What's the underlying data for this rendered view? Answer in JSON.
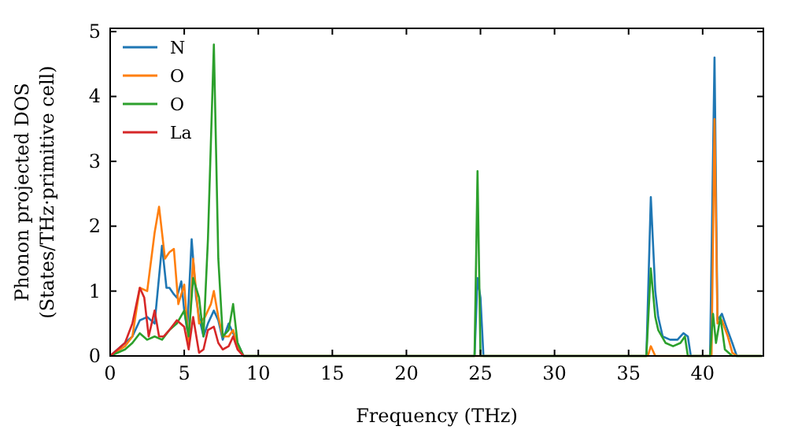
{
  "chart_data": {
    "type": "line",
    "xlabel": "Frequency (THz)",
    "ylabel": "Phonon projected DOS\n(States/THz·primitive cell)",
    "xlim": [
      0,
      44.1
    ],
    "ylim": [
      0,
      5.05
    ],
    "xticks": [
      0,
      5,
      10,
      15,
      20,
      25,
      30,
      35,
      40
    ],
    "yticks": [
      0,
      1,
      2,
      3,
      4,
      5
    ],
    "legend": "top left",
    "grid": false,
    "series": [
      {
        "name": "N",
        "color": "#1f77b4",
        "x": [
          0,
          0.5,
          1,
          1.5,
          2,
          2.5,
          3,
          3.5,
          3.8,
          4,
          4.3,
          4.5,
          4.8,
          5,
          5.2,
          5.5,
          5.8,
          6,
          6.3,
          6.6,
          7,
          7.3,
          7.6,
          8,
          8.4,
          8.8,
          9,
          24.6,
          24.8,
          25,
          25.2,
          36.2,
          36.5,
          36.8,
          37,
          37.3,
          37.8,
          38.3,
          38.7,
          39,
          39.2,
          40.5,
          40.8,
          41,
          41.3,
          41.6,
          42,
          42.3,
          44
        ],
        "values": [
          0,
          0.1,
          0.2,
          0.3,
          0.55,
          0.6,
          0.5,
          1.7,
          1.05,
          1.05,
          0.95,
          0.9,
          1.15,
          0.7,
          0.4,
          1.8,
          0.9,
          0.6,
          0.3,
          0.5,
          0.7,
          0.55,
          0.25,
          0.5,
          0.3,
          0.1,
          0,
          0,
          1.2,
          0.9,
          0,
          0,
          2.45,
          1,
          0.6,
          0.3,
          0.25,
          0.25,
          0.35,
          0.3,
          0,
          0,
          4.6,
          0.55,
          0.65,
          0.45,
          0.2,
          0,
          0
        ]
      },
      {
        "name": "O",
        "color": "#ff7f0e",
        "x": [
          0,
          1,
          1.5,
          2,
          2.5,
          3,
          3.3,
          3.7,
          4,
          4.3,
          4.6,
          5,
          5.3,
          5.6,
          6,
          6.4,
          6.8,
          7,
          7.3,
          7.6,
          8,
          8.3,
          8.7,
          9,
          36.3,
          36.5,
          36.8,
          40.6,
          40.8,
          41,
          41.3,
          41.7,
          42,
          42.3,
          44
        ],
        "values": [
          0,
          0.15,
          0.3,
          1.05,
          1,
          1.9,
          2.3,
          1.5,
          1.6,
          1.65,
          0.8,
          1.1,
          0.15,
          1.5,
          0.5,
          0.6,
          0.8,
          1,
          0.6,
          0.3,
          0.3,
          0.4,
          0.1,
          0,
          0,
          0.15,
          0,
          0,
          3.65,
          0.5,
          0.55,
          0.3,
          0.05,
          0,
          0
        ]
      },
      {
        "name": "O",
        "color": "#2ca02c",
        "x": [
          0,
          1,
          1.5,
          2,
          2.5,
          3,
          3.5,
          4,
          4.5,
          5,
          5.3,
          5.6,
          6,
          6.3,
          6.6,
          7,
          7.3,
          7.6,
          8,
          8.3,
          8.6,
          9,
          24.6,
          24.8,
          25,
          36.2,
          36.5,
          36.8,
          37,
          37.5,
          38,
          38.5,
          38.8,
          39,
          40.5,
          40.7,
          40.9,
          41.2,
          41.5,
          42,
          44
        ],
        "values": [
          0,
          0.1,
          0.2,
          0.35,
          0.25,
          0.3,
          0.25,
          0.4,
          0.5,
          0.7,
          0.3,
          1.2,
          0.9,
          0.3,
          1.8,
          4.8,
          1.5,
          0.3,
          0.4,
          0.8,
          0.2,
          0,
          0,
          2.85,
          0,
          0,
          1.35,
          0.6,
          0.4,
          0.2,
          0.15,
          0.2,
          0.3,
          0,
          0,
          0.65,
          0.2,
          0.6,
          0.1,
          0,
          0
        ]
      },
      {
        "name": "La",
        "color": "#d62728",
        "x": [
          0,
          0.5,
          1,
          1.5,
          2,
          2.3,
          2.6,
          3,
          3.3,
          3.6,
          4,
          4.5,
          5,
          5.3,
          5.6,
          6,
          6.3,
          6.6,
          7,
          7.3,
          7.6,
          8,
          8.3,
          8.6,
          9
        ],
        "values": [
          0,
          0.1,
          0.2,
          0.5,
          1.05,
          0.9,
          0.3,
          0.7,
          0.3,
          0.3,
          0.4,
          0.55,
          0.45,
          0.1,
          0.6,
          0.05,
          0.1,
          0.4,
          0.45,
          0.2,
          0.1,
          0.15,
          0.3,
          0.1,
          0
        ]
      }
    ]
  }
}
